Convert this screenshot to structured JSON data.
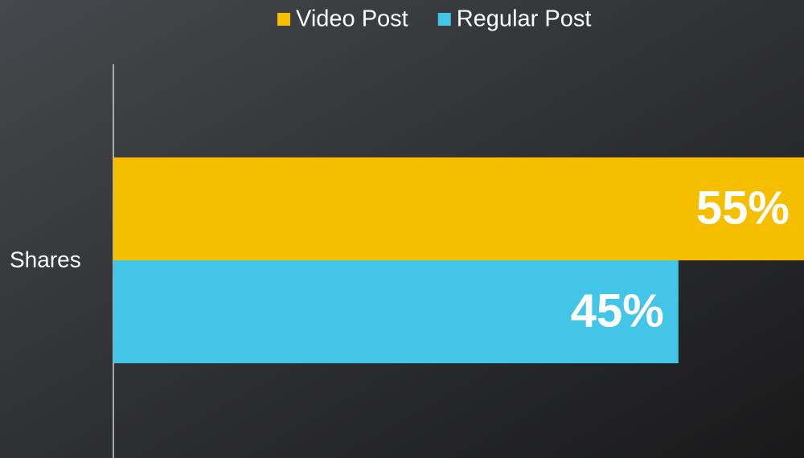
{
  "chart_data": {
    "type": "bar",
    "orientation": "horizontal",
    "categories": [
      "Shares"
    ],
    "series": [
      {
        "name": "Video Post",
        "color": "#f5bf00",
        "values": [
          55
        ],
        "value_labels": [
          "55%"
        ]
      },
      {
        "name": "Regular Post",
        "color": "#42c5e6",
        "values": [
          45
        ],
        "value_labels": [
          "45%"
        ]
      }
    ],
    "xlim": [
      0,
      55
    ],
    "legend": "top"
  }
}
